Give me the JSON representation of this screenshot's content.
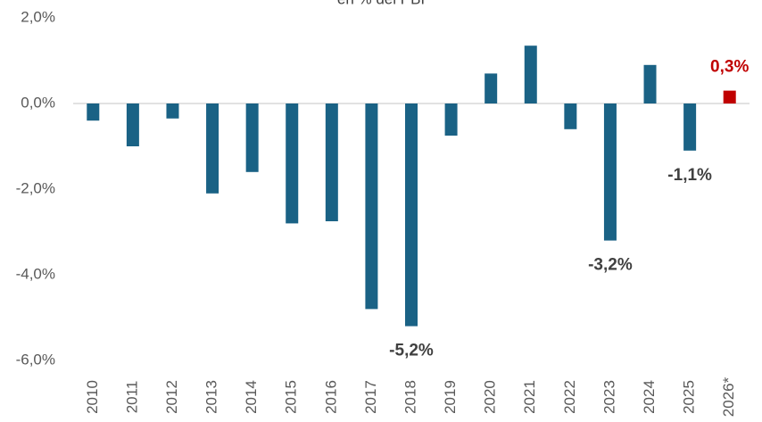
{
  "chart_data": {
    "type": "bar",
    "title": "en % del PBI",
    "categories": [
      "2010",
      "2011",
      "2012",
      "2013",
      "2014",
      "2015",
      "2016",
      "2017",
      "2018",
      "2019",
      "2020",
      "2021",
      "2022",
      "2023",
      "2024",
      "2025",
      "2026*"
    ],
    "values": [
      -0.4,
      -1.0,
      -0.35,
      -2.1,
      -1.6,
      -2.8,
      -2.75,
      -4.8,
      -5.2,
      -0.75,
      0.7,
      1.35,
      -0.6,
      -3.2,
      0.9,
      -1.1,
      0.3
    ],
    "value_labels": [
      null,
      null,
      null,
      null,
      null,
      null,
      null,
      null,
      "-5,2%",
      null,
      null,
      null,
      null,
      "-3,2%",
      null,
      "-1,1%",
      "0,3%"
    ],
    "colors": [
      "#1a6285",
      "#1a6285",
      "#1a6285",
      "#1a6285",
      "#1a6285",
      "#1a6285",
      "#1a6285",
      "#1a6285",
      "#1a6285",
      "#1a6285",
      "#1a6285",
      "#1a6285",
      "#1a6285",
      "#1a6285",
      "#1a6285",
      "#1a6285",
      "#c00000"
    ],
    "ylim": [
      -6,
      2
    ],
    "yticks": [
      {
        "value": -6,
        "label": "-6,0%"
      },
      {
        "value": -4,
        "label": "-4,0%"
      },
      {
        "value": -2,
        "label": "-2,0%"
      },
      {
        "value": 0,
        "label": "0,0%"
      },
      {
        "value": 2,
        "label": "2,0%"
      }
    ],
    "grid": false
  }
}
